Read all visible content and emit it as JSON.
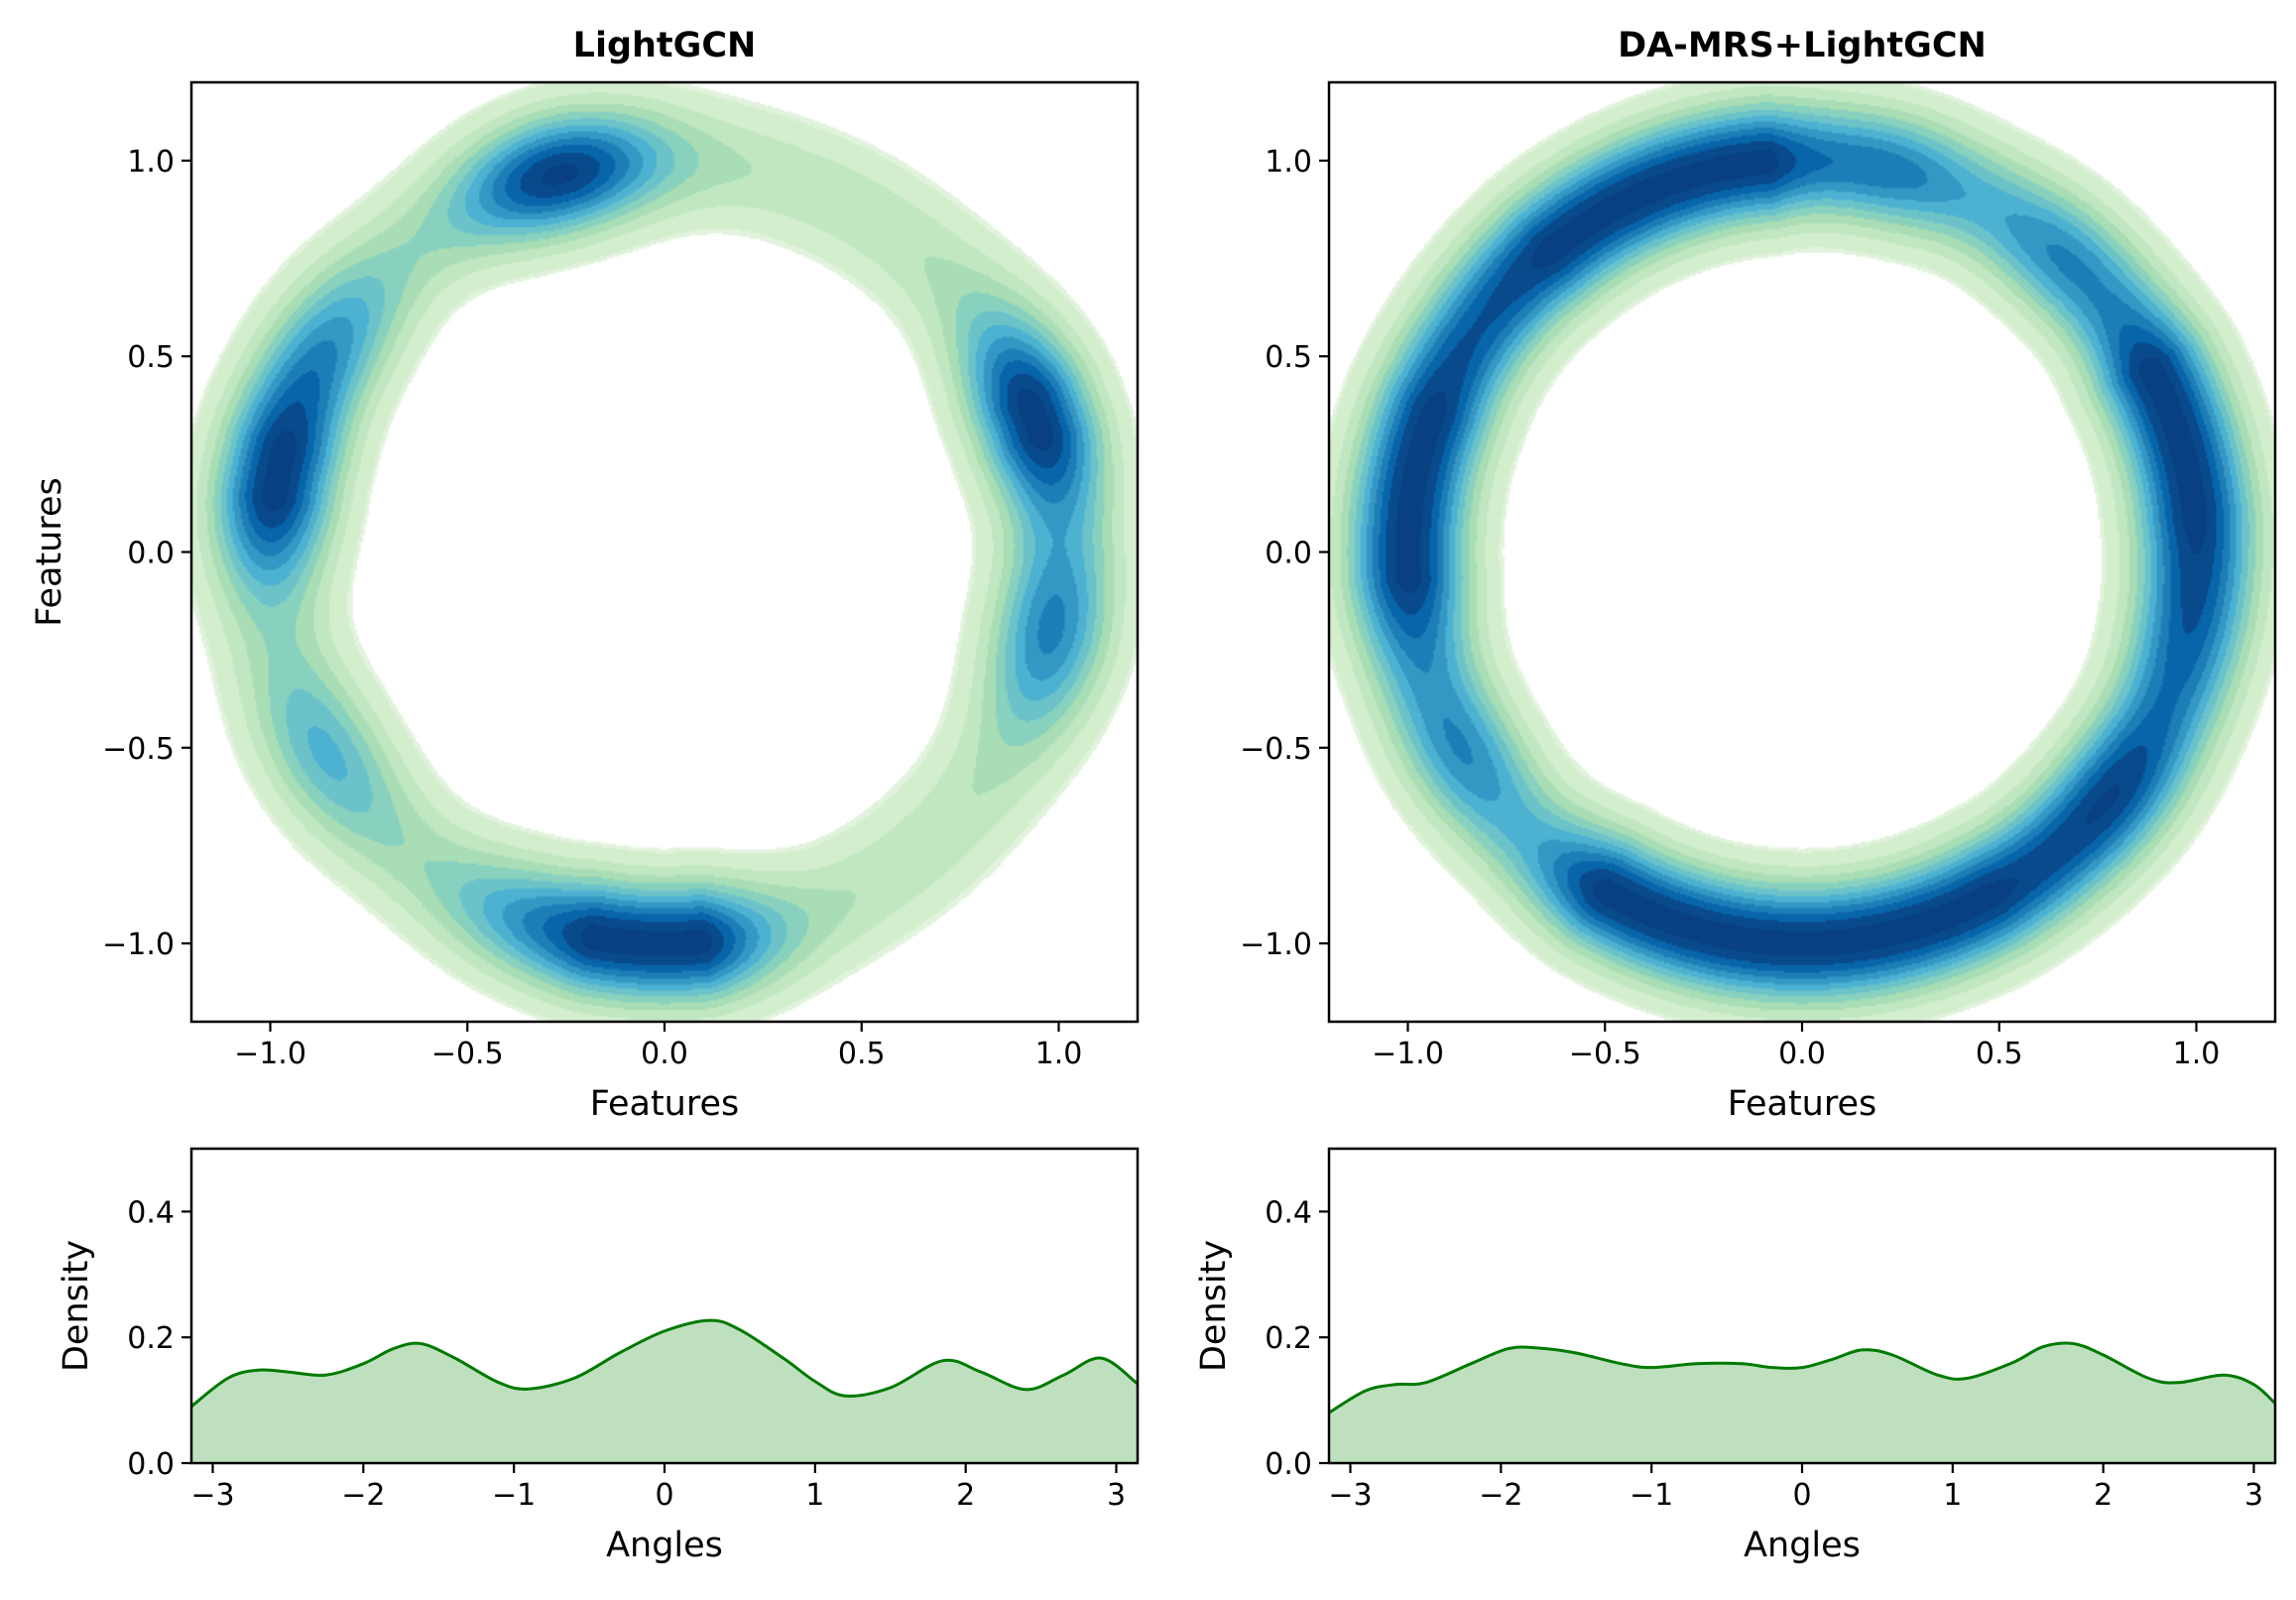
{
  "chart_data": [
    {
      "type": "heatmap",
      "panel": "top-left",
      "title": "LightGCN",
      "xlabel": "Features",
      "ylabel": "Features",
      "xlim": [
        -1.2,
        1.2
      ],
      "ylim": [
        -1.2,
        1.2
      ],
      "xticks": [
        -1.0,
        -0.5,
        0.0,
        0.5,
        1.0
      ],
      "yticks": [
        -1.0,
        -0.5,
        0.0,
        0.5,
        1.0
      ],
      "xtick_labels": [
        "−1.0",
        "−0.5",
        "0.0",
        "0.5",
        "1.0"
      ],
      "ytick_labels": [
        "−1.0",
        "−0.5",
        "0.0",
        "0.5",
        "1.0"
      ],
      "colormap": "GnBu",
      "description_kde": "density of unit-circle feature embeddings",
      "hotspots": [
        {
          "angle": -1.57,
          "strength": 1.0
        },
        {
          "angle": 1.84,
          "strength": 0.85
        },
        {
          "angle": 0.35,
          "strength": 0.9
        },
        {
          "angle": -0.2,
          "strength": 0.55
        },
        {
          "angle": 2.97,
          "strength": 0.85
        },
        {
          "angle": 2.6,
          "strength": 0.45
        },
        {
          "angle": -2.6,
          "strength": 0.35
        },
        {
          "angle": -1.9,
          "strength": 0.4
        }
      ]
    },
    {
      "type": "heatmap",
      "panel": "top-right",
      "title": "DA-MRS+LightGCN",
      "xlabel": "Features",
      "ylabel": "",
      "xlim": [
        -1.2,
        1.2
      ],
      "ylim": [
        -1.2,
        1.2
      ],
      "xticks": [
        -1.0,
        -0.5,
        0.0,
        0.5,
        1.0
      ],
      "yticks": [
        -1.0,
        -0.5,
        0.0,
        0.5,
        1.0
      ],
      "xtick_labels": [
        "−1.0",
        "−0.5",
        "0.0",
        "0.5",
        "1.0"
      ],
      "ytick_labels": [
        "−1.0",
        "−0.5",
        "0.0",
        "0.5",
        "1.0"
      ],
      "colormap": "GnBu",
      "hotspots": [
        {
          "angle": 1.81,
          "strength": 1.0
        },
        {
          "angle": 0.38,
          "strength": 0.95
        },
        {
          "angle": -2.03,
          "strength": 0.9
        },
        {
          "angle": 2.95,
          "strength": 0.75
        },
        {
          "angle": -1.64,
          "strength": 0.7
        },
        {
          "angle": -1.48,
          "strength": 0.65
        },
        {
          "angle": -1.3,
          "strength": 0.6
        },
        {
          "angle": -0.65,
          "strength": 0.7
        },
        {
          "angle": 2.05,
          "strength": 0.7
        },
        {
          "angle": 2.35,
          "strength": 0.5
        },
        {
          "angle": 1.35,
          "strength": 0.55
        },
        {
          "angle": 0.85,
          "strength": 0.5
        },
        {
          "angle": 0.05,
          "strength": 0.55
        },
        {
          "angle": -0.25,
          "strength": 0.5
        },
        {
          "angle": -2.6,
          "strength": 0.5
        },
        {
          "angle": -3.05,
          "strength": 0.6
        },
        {
          "angle": 2.65,
          "strength": 0.45
        },
        {
          "angle": -1.0,
          "strength": 0.55
        }
      ]
    },
    {
      "type": "area",
      "panel": "bottom-left",
      "title": "",
      "xlabel": "Angles",
      "ylabel": "Density",
      "xlim": [
        -3.14159,
        3.14159
      ],
      "ylim": [
        0,
        0.5
      ],
      "xticks": [
        -3,
        -2,
        -1,
        0,
        1,
        2,
        3
      ],
      "yticks": [
        0.0,
        0.2,
        0.4
      ],
      "xtick_labels": [
        "−3",
        "−2",
        "−1",
        "0",
        "1",
        "2",
        "3"
      ],
      "ytick_labels": [
        "0.0",
        "0.2",
        "0.4"
      ],
      "line_color": "#007a00",
      "fill_color": "#bfe0bf",
      "x": [
        -3.14159,
        -2.9,
        -2.7,
        -2.5,
        -2.25,
        -2.0,
        -1.8,
        -1.62,
        -1.4,
        -1.1,
        -0.9,
        -0.6,
        -0.3,
        0.0,
        0.3,
        0.5,
        0.8,
        1.0,
        1.2,
        1.5,
        1.85,
        2.1,
        2.4,
        2.65,
        2.9,
        3.14159
      ],
      "y": [
        0.09,
        0.135,
        0.148,
        0.145,
        0.14,
        0.158,
        0.182,
        0.19,
        0.168,
        0.128,
        0.118,
        0.135,
        0.175,
        0.21,
        0.227,
        0.212,
        0.165,
        0.13,
        0.107,
        0.12,
        0.163,
        0.145,
        0.117,
        0.14,
        0.167,
        0.126
      ]
    },
    {
      "type": "area",
      "panel": "bottom-right",
      "title": "",
      "xlabel": "Angles",
      "ylabel": "Density",
      "xlim": [
        -3.14159,
        3.14159
      ],
      "ylim": [
        0,
        0.5
      ],
      "xticks": [
        -3,
        -2,
        -1,
        0,
        1,
        2,
        3
      ],
      "yticks": [
        0.0,
        0.2,
        0.4
      ],
      "xtick_labels": [
        "−3",
        "−2",
        "−1",
        "0",
        "1",
        "2",
        "3"
      ],
      "ytick_labels": [
        "0.0",
        "0.2",
        "0.4"
      ],
      "line_color": "#007a00",
      "fill_color": "#bfe0bf",
      "x": [
        -3.14159,
        -2.9,
        -2.7,
        -2.5,
        -2.2,
        -1.95,
        -1.75,
        -1.5,
        -1.2,
        -1.0,
        -0.7,
        -0.4,
        -0.2,
        0.0,
        0.2,
        0.4,
        0.6,
        0.9,
        1.1,
        1.4,
        1.6,
        1.8,
        2.0,
        2.3,
        2.5,
        2.8,
        3.0,
        3.14159
      ],
      "y": [
        0.08,
        0.115,
        0.125,
        0.128,
        0.158,
        0.182,
        0.183,
        0.175,
        0.158,
        0.152,
        0.158,
        0.158,
        0.152,
        0.152,
        0.165,
        0.18,
        0.172,
        0.14,
        0.135,
        0.16,
        0.185,
        0.19,
        0.172,
        0.135,
        0.128,
        0.14,
        0.125,
        0.095
      ]
    }
  ]
}
